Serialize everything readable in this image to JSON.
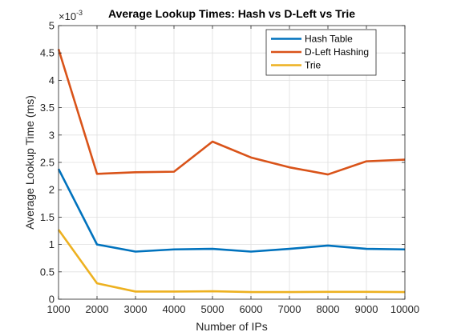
{
  "chart_data": {
    "type": "line",
    "title": "Average Lookup Times: Hash vs D-Left vs Trie",
    "xlabel": "Number of IPs",
    "ylabel": "Average Lookup Time (ms)",
    "y_exponent_label": "×10",
    "y_exponent": "-3",
    "xlim": [
      1000,
      10000
    ],
    "ylim": [
      0,
      5
    ],
    "x_ticks": [
      1000,
      2000,
      3000,
      4000,
      5000,
      6000,
      7000,
      8000,
      9000,
      10000
    ],
    "y_ticks": [
      0,
      0.5,
      1,
      1.5,
      2,
      2.5,
      3,
      3.5,
      4,
      4.5,
      5
    ],
    "y_tick_labels": [
      "0",
      "0.5",
      "1",
      "1.5",
      "2",
      "2.5",
      "3",
      "3.5",
      "4",
      "4.5",
      "5"
    ],
    "grid": true,
    "legend_position": "top-right",
    "x": [
      1000,
      2000,
      3000,
      4000,
      5000,
      6000,
      7000,
      8000,
      9000,
      10000
    ],
    "series": [
      {
        "name": "Hash Table",
        "color": "#0072BD",
        "values": [
          2.38,
          1.0,
          0.87,
          0.91,
          0.92,
          0.87,
          0.92,
          0.98,
          0.92,
          0.91
        ]
      },
      {
        "name": "D-Left Hashing",
        "color": "#D95319",
        "values": [
          4.57,
          2.29,
          2.32,
          2.33,
          2.88,
          2.59,
          2.41,
          2.28,
          2.52,
          2.55
        ]
      },
      {
        "name": "Trie",
        "color": "#EDB120",
        "values": [
          1.27,
          0.29,
          0.14,
          0.14,
          0.145,
          0.13,
          0.13,
          0.135,
          0.135,
          0.13
        ]
      }
    ]
  }
}
